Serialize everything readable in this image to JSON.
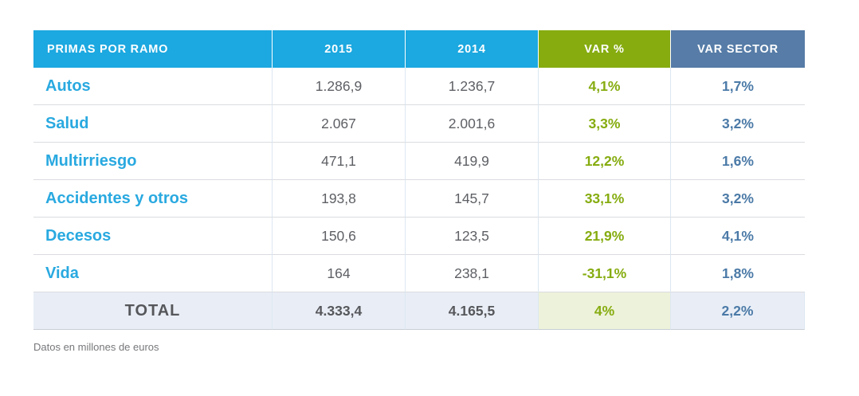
{
  "chart_data": {
    "type": "table",
    "columns": [
      "PRIMAS POR RAMO",
      "2015",
      "2014",
      "VAR %",
      "VAR SECTOR"
    ],
    "rows": [
      [
        "Autos",
        "1.286,9",
        "1.236,7",
        "4,1%",
        "1,7%"
      ],
      [
        "Salud",
        "2.067",
        "2.001,6",
        "3,3%",
        "3,2%"
      ],
      [
        "Multirriesgo",
        "471,1",
        "419,9",
        "12,2%",
        "1,6%"
      ],
      [
        "Accidentes y otros",
        "193,8",
        "145,7",
        "33,1%",
        "3,2%"
      ],
      [
        "Decesos",
        "150,6",
        "123,5",
        "21,9%",
        "4,1%"
      ],
      [
        "Vida",
        "164",
        "238,1",
        "-31,1%",
        "1,8%"
      ]
    ],
    "total": [
      "TOTAL",
      "4.333,4",
      "4.165,5",
      "4%",
      "2,2%"
    ],
    "footnote": "Datos en millones de euros",
    "units": "millones de euros",
    "layout": {
      "grid": true,
      "total_row_highlighted": true
    },
    "colors": {
      "header_blue": "#1CA8E0",
      "header_green": "#86AC10",
      "header_slate": "#567CA7",
      "row_label_blue": "#29A9E0",
      "value_gray": "#5E6065",
      "var_green": "#86AC10",
      "sector_blue": "#4B7AA7",
      "total_row_bg": "#E9EEF6",
      "total_var_bg": "#EDF2DA"
    }
  }
}
